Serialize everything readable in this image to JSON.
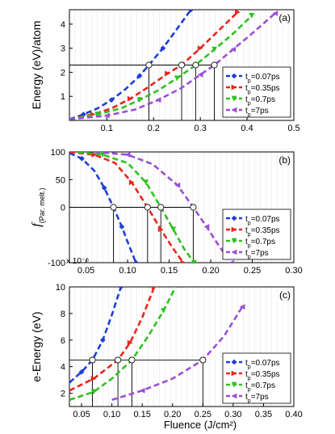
{
  "figure": {
    "xlabel": "Fluence (J/cm²)",
    "legend_labels": [
      "t_p=0.07ps",
      "t_p=0.35ps",
      "t_p=0.7ps",
      "t_p=7ps"
    ],
    "colors": [
      "#1f3fd6",
      "#e8261c",
      "#2fc21f",
      "#9b4fd8"
    ]
  },
  "chart_data": [
    {
      "type": "line",
      "panel_label": "(a)",
      "ylabel": "Energy (eV)/atom",
      "xlim": [
        0.02,
        0.5
      ],
      "ylim": [
        0,
        4.6
      ],
      "xticks": [
        0.1,
        0.2,
        0.3,
        0.4,
        0.5
      ],
      "xtick_labels": [
        "0.1",
        "0.2",
        "0.3",
        "0.4",
        "0.5"
      ],
      "yticks": [
        1,
        2,
        3,
        4
      ],
      "ytick_labels": [
        "1",
        "2",
        "3",
        "4"
      ],
      "legend_position": "lower-right",
      "threshold_y": 2.3,
      "series": [
        {
          "name": "t_p=0.07ps",
          "x": [
            0.02,
            0.05,
            0.08,
            0.11,
            0.14,
            0.17,
            0.19,
            0.22,
            0.25,
            0.28
          ],
          "y": [
            0.05,
            0.25,
            0.5,
            0.85,
            1.3,
            1.85,
            2.3,
            3.0,
            3.8,
            4.6
          ],
          "marker": "diamond",
          "intersect": [
            0.19,
            2.3
          ]
        },
        {
          "name": "t_p=0.35ps",
          "x": [
            0.02,
            0.07,
            0.11,
            0.15,
            0.19,
            0.23,
            0.26,
            0.3,
            0.34,
            0.38
          ],
          "y": [
            0.05,
            0.25,
            0.5,
            0.9,
            1.4,
            1.95,
            2.3,
            3.0,
            3.75,
            4.5
          ],
          "marker": "triangle-right",
          "intersect": [
            0.26,
            2.3
          ]
        },
        {
          "name": "t_p=0.7ps",
          "x": [
            0.02,
            0.08,
            0.13,
            0.17,
            0.21,
            0.25,
            0.29,
            0.33,
            0.37,
            0.41
          ],
          "y": [
            0.05,
            0.25,
            0.5,
            0.85,
            1.25,
            1.75,
            2.3,
            2.95,
            3.6,
            4.35
          ],
          "marker": "triangle-down",
          "intersect": [
            0.29,
            2.3
          ]
        },
        {
          "name": "t_p=7ps",
          "x": [
            0.02,
            0.1,
            0.16,
            0.21,
            0.26,
            0.3,
            0.33,
            0.37,
            0.41,
            0.46
          ],
          "y": [
            0.05,
            0.2,
            0.45,
            0.85,
            1.35,
            1.9,
            2.3,
            2.95,
            3.6,
            4.45
          ],
          "marker": "triangle-left",
          "intersect": [
            0.33,
            2.3
          ]
        }
      ]
    },
    {
      "type": "line",
      "panel_label": "(b)",
      "ylabel": "f",
      "ylabel_sub": "(Par. melt.)",
      "y_multiplier": "x 10⁻⁶",
      "xlim": [
        0.03,
        0.3
      ],
      "ylim": [
        -100,
        100
      ],
      "xticks": [
        0.05,
        0.1,
        0.15,
        0.2,
        0.25,
        0.3
      ],
      "xtick_labels": [
        "0.05",
        "0.10",
        "0.15",
        "0.20",
        "0.25",
        "0.30"
      ],
      "yticks": [
        -100,
        0,
        50,
        100
      ],
      "ytick_labels": [
        "-100",
        "0",
        "50",
        "100"
      ],
      "legend_position": "lower-right",
      "threshold_y": 0,
      "series": [
        {
          "name": "t_p=0.07ps",
          "x": [
            0.03,
            0.045,
            0.06,
            0.072,
            0.083,
            0.093,
            0.102,
            0.11
          ],
          "y": [
            98,
            88,
            66,
            35,
            0,
            -35,
            -70,
            -100
          ],
          "marker": "diamond",
          "intersect": [
            0.083,
            0
          ]
        },
        {
          "name": "t_p=0.35ps",
          "x": [
            0.03,
            0.06,
            0.085,
            0.105,
            0.124,
            0.14,
            0.155,
            0.167
          ],
          "y": [
            100,
            95,
            80,
            45,
            0,
            -40,
            -75,
            -100
          ],
          "marker": "triangle-right",
          "intersect": [
            0.124,
            0
          ]
        },
        {
          "name": "t_p=0.7ps",
          "x": [
            0.04,
            0.07,
            0.1,
            0.122,
            0.14,
            0.155,
            0.168,
            0.18
          ],
          "y": [
            100,
            95,
            80,
            45,
            0,
            -40,
            -75,
            -100
          ],
          "marker": "triangle-down",
          "intersect": [
            0.14,
            0
          ]
        },
        {
          "name": "t_p=7ps",
          "x": [
            0.06,
            0.1,
            0.13,
            0.16,
            0.179,
            0.195,
            0.21,
            0.225
          ],
          "y": [
            100,
            95,
            78,
            40,
            0,
            -35,
            -70,
            -100
          ],
          "marker": "triangle-left",
          "intersect": [
            0.179,
            0
          ]
        }
      ]
    },
    {
      "type": "line",
      "panel_label": "(c)",
      "ylabel": "e-Energy (eV)",
      "xlim": [
        0.03,
        0.4
      ],
      "ylim": [
        1,
        10
      ],
      "xticks": [
        0.05,
        0.1,
        0.15,
        0.2,
        0.25,
        0.3,
        0.35,
        0.4
      ],
      "xtick_labels": [
        "0.05",
        "0.10",
        "0.15",
        "0.20",
        "0.25",
        "0.30",
        "0.35",
        "0.40"
      ],
      "yticks": [
        2,
        4,
        6,
        8,
        10
      ],
      "ytick_labels": [
        "2",
        "4",
        "6",
        "8",
        "10"
      ],
      "legend_position": "lower-right",
      "threshold_y": 4.5,
      "series": [
        {
          "name": "t_p=0.07ps",
          "x": [
            0.03,
            0.05,
            0.068,
            0.085,
            0.1,
            0.115
          ],
          "y": [
            2.8,
            3.6,
            4.5,
            6.0,
            7.9,
            10
          ],
          "marker": "diamond",
          "intersect": [
            0.068,
            4.5
          ]
        },
        {
          "name": "t_p=0.35ps",
          "x": [
            0.03,
            0.07,
            0.11,
            0.13,
            0.15,
            0.17
          ],
          "y": [
            2.2,
            3.1,
            4.5,
            5.8,
            7.7,
            10
          ],
          "marker": "triangle-right",
          "intersect": [
            0.11,
            4.5
          ]
        },
        {
          "name": "t_p=0.7ps",
          "x": [
            0.03,
            0.07,
            0.1,
            0.133,
            0.16,
            0.185,
            0.205
          ],
          "y": [
            1.5,
            2.1,
            3.1,
            4.5,
            6.3,
            8.2,
            10
          ],
          "marker": "triangle-down",
          "intersect": [
            0.133,
            4.5
          ]
        },
        {
          "name": "t_p=7ps",
          "x": [
            0.1,
            0.15,
            0.2,
            0.25,
            0.285,
            0.315
          ],
          "y": [
            1.5,
            2.2,
            3.1,
            4.5,
            6.3,
            8.5
          ],
          "marker": "triangle-left",
          "intersect": [
            0.25,
            4.5
          ]
        }
      ]
    }
  ]
}
